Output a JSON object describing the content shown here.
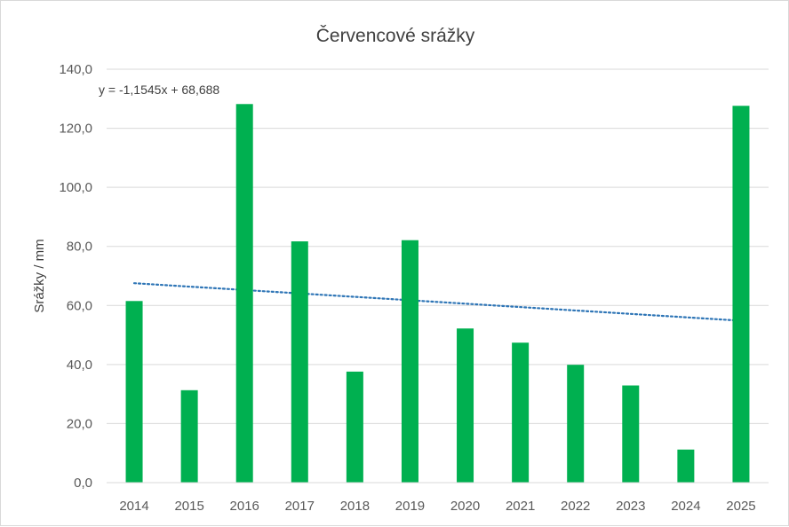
{
  "chart_data": {
    "type": "bar",
    "title": "Červencové srážky",
    "xlabel": "",
    "ylabel": "Srážky / mm",
    "categories": [
      "2014",
      "2015",
      "2016",
      "2017",
      "2018",
      "2019",
      "2020",
      "2021",
      "2022",
      "2023",
      "2024",
      "2025"
    ],
    "series": [
      {
        "values": [
          61.5,
          31.3,
          128.2,
          81.7,
          37.6,
          82.1,
          52.2,
          47.4,
          39.9,
          32.9,
          11.2,
          127.6
        ],
        "color": "#00b050"
      }
    ],
    "ylim": [
      0,
      140
    ],
    "yticks": [
      "0,0",
      "20,0",
      "40,0",
      "60,0",
      "80,0",
      "100,0",
      "120,0",
      "140,0"
    ],
    "grid": true,
    "legend": "none",
    "trendline": {
      "type": "linear",
      "equation": "y = -1,1545x + 68,688",
      "slope": -1.1545,
      "intercept": 68.688,
      "color": "#2e75b6",
      "style": "dotted"
    }
  }
}
